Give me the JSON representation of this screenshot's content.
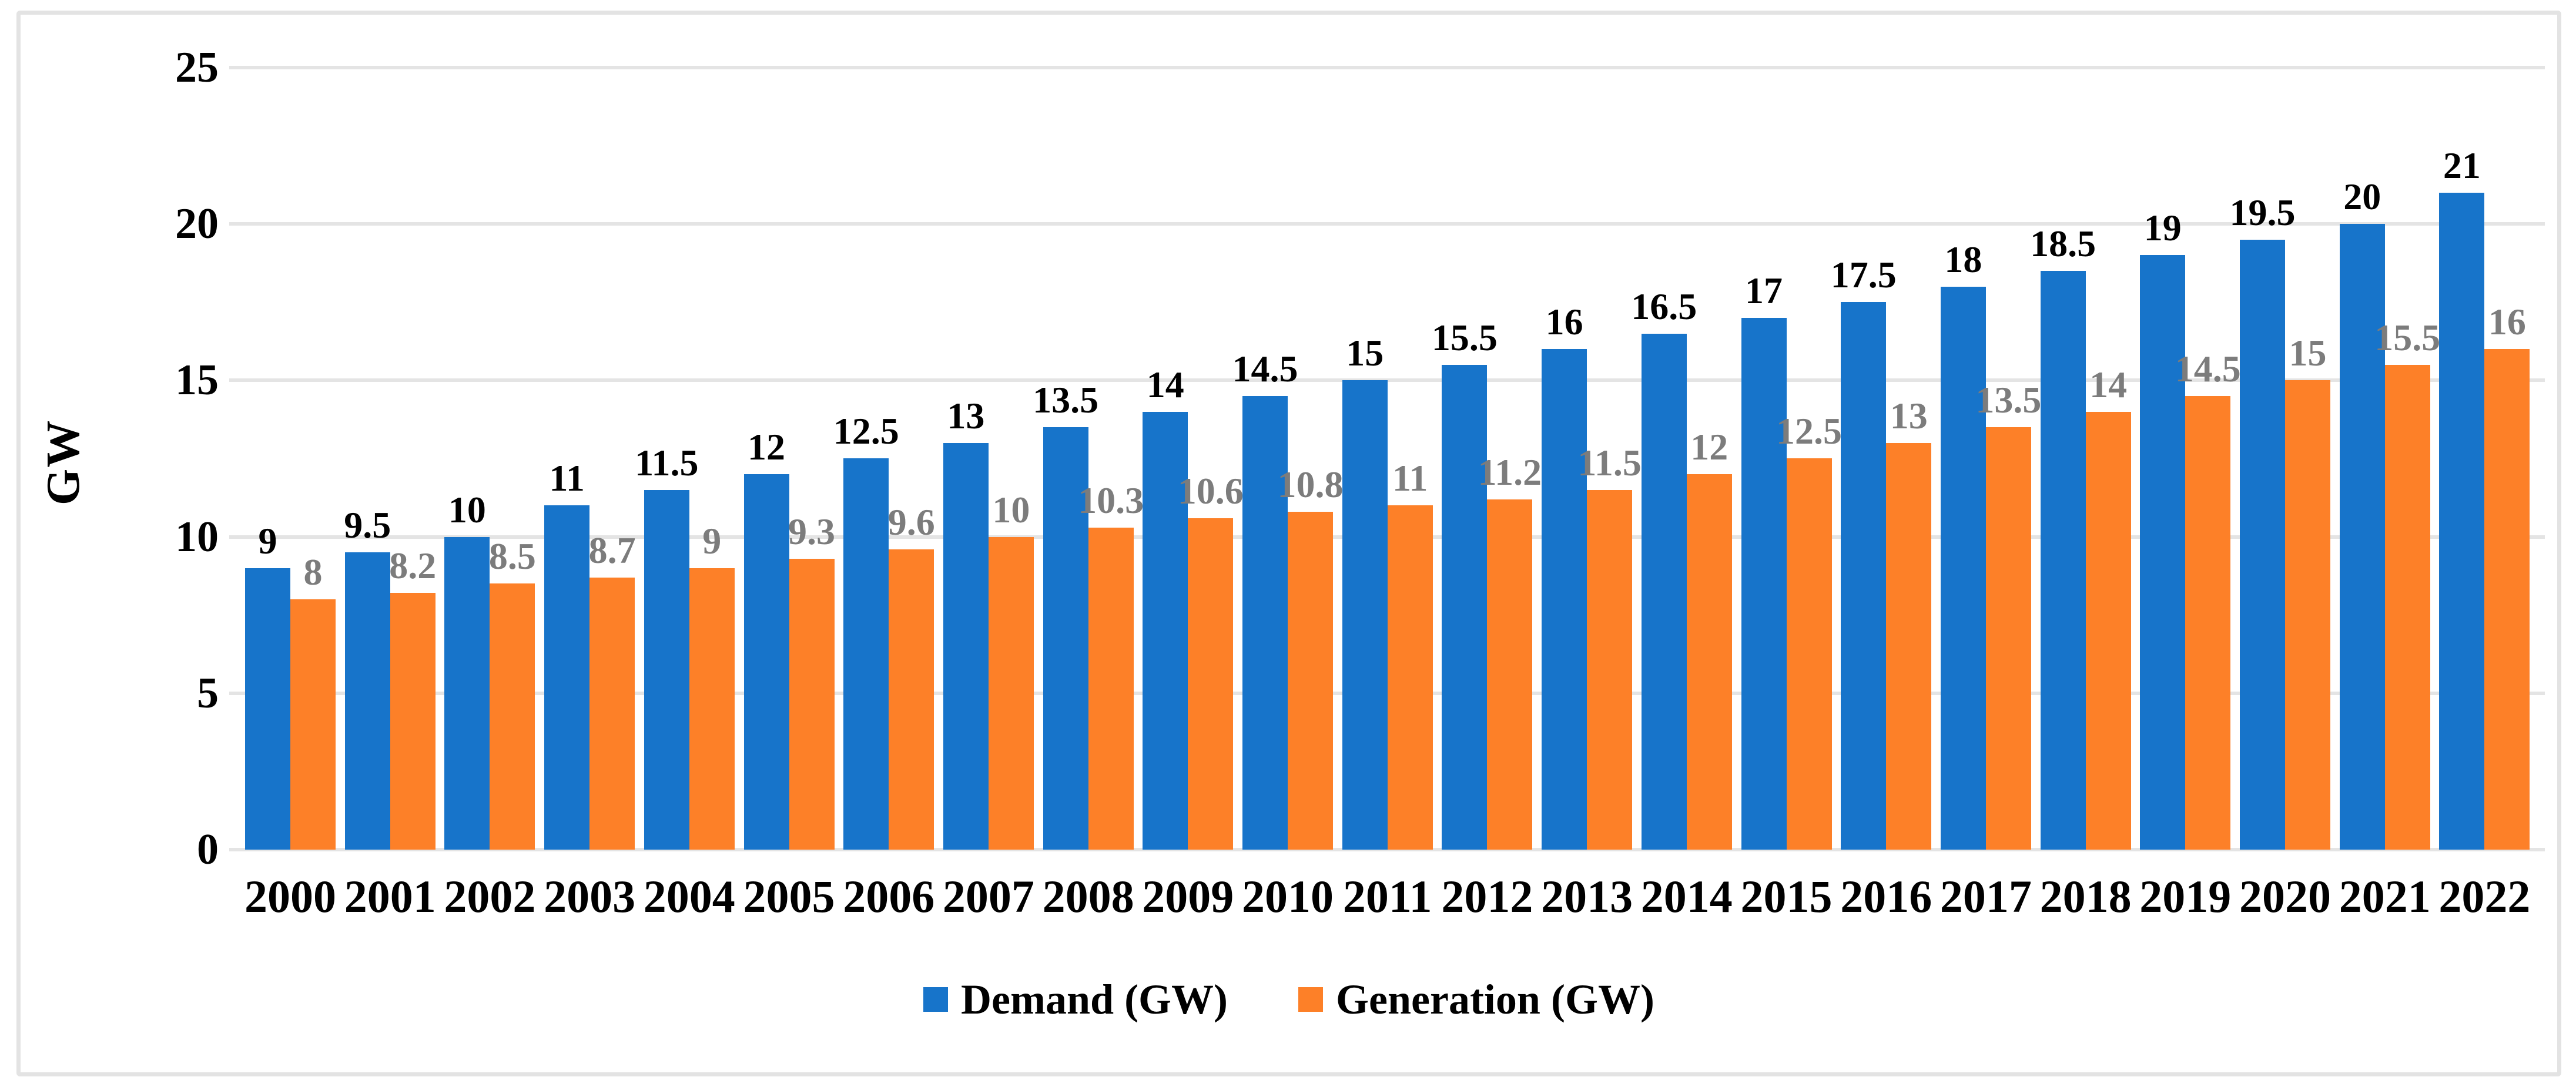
{
  "chart_data": {
    "type": "bar",
    "title": "",
    "xlabel": "",
    "ylabel": "GW",
    "categories": [
      "2000",
      "2001",
      "2002",
      "2003",
      "2004",
      "2005",
      "2006",
      "2007",
      "2008",
      "2009",
      "2010",
      "2011",
      "2012",
      "2013",
      "2014",
      "2015",
      "2016",
      "2017",
      "2018",
      "2019",
      "2020",
      "2021",
      "2022"
    ],
    "series": [
      {
        "name": "Demand (GW)",
        "color": "#1774ca",
        "label_color": "#000000",
        "values": [
          9,
          9.5,
          10,
          11,
          11.5,
          12,
          12.5,
          13,
          13.5,
          14,
          14.5,
          15,
          15.5,
          16,
          16.5,
          17,
          17.5,
          18,
          18.5,
          19,
          19.5,
          20,
          21
        ]
      },
      {
        "name": "Generation (GW)",
        "color": "#fd8028",
        "label_color": "#7c7c7c",
        "values": [
          8,
          8.2,
          8.5,
          8.7,
          9,
          9.3,
          9.6,
          10,
          10.3,
          10.6,
          10.8,
          11,
          11.2,
          11.5,
          12,
          12.5,
          13,
          13.5,
          14,
          14.5,
          15,
          15.5,
          16
        ]
      }
    ],
    "y_ticks": [
      0,
      5,
      10,
      15,
      20,
      25
    ],
    "ylim": [
      0,
      25
    ],
    "grid": true,
    "legend_position": "bottom",
    "gridline_color": "#e4e4e4",
    "frame_border_color": "#e3e3e3"
  }
}
